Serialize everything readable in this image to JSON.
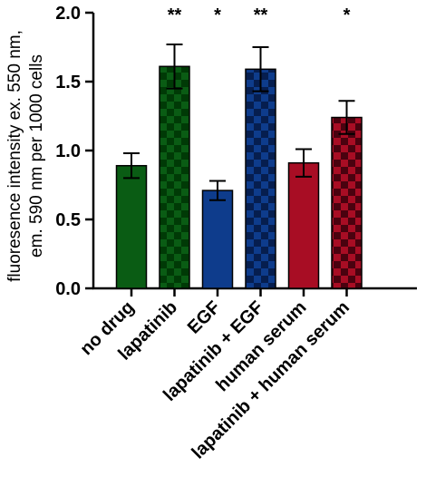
{
  "chart_data": {
    "type": "bar",
    "ylabel_line1": "fluoresence intensity ex. 550 nm,",
    "ylabel_line2": "em. 590 nm per 1000 cells",
    "ylim": [
      0,
      2.0
    ],
    "yticks": [
      "0.0",
      "0.5",
      "1.0",
      "1.5",
      "2.0"
    ],
    "categories": [
      "no drug",
      "lapatinib",
      "EGF",
      "lapatinib + EGF",
      "human serum",
      "lapatinib + human serum"
    ],
    "values": [
      0.89,
      1.61,
      0.71,
      1.59,
      0.91,
      1.24
    ],
    "errors": [
      0.09,
      0.16,
      0.07,
      0.16,
      0.1,
      0.12
    ],
    "significance": [
      "",
      "**",
      "*",
      "**",
      "",
      "*"
    ],
    "colors": {
      "green": "#0a5c14",
      "blue": "#0e3c8c",
      "red": "#a80d24",
      "checker_dark_green": "#003a06",
      "checker_dark_blue": "#061e4f",
      "checker_dark_red": "#4a020f"
    },
    "fill_styles": [
      "solid",
      "checkered",
      "solid",
      "checkered",
      "solid",
      "checkered"
    ],
    "grid": false
  }
}
